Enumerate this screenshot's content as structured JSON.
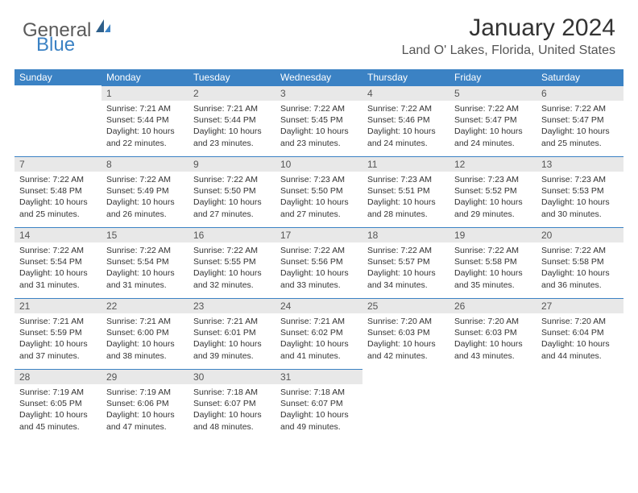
{
  "logo": {
    "general": "General",
    "blue": "Blue"
  },
  "title": "January 2024",
  "location": "Land O' Lakes, Florida, United States",
  "columns": [
    "Sunday",
    "Monday",
    "Tuesday",
    "Wednesday",
    "Thursday",
    "Friday",
    "Saturday"
  ],
  "colors": {
    "header_bg": "#3b82c4",
    "header_text": "#ffffff",
    "daynum_bg": "#e8e8e8",
    "border": "#3b82c4",
    "text": "#333333",
    "logo_gray": "#5a5a5a",
    "logo_blue": "#3b82c4"
  },
  "first_weekday": 1,
  "days": [
    {
      "n": "1",
      "sunrise": "7:21 AM",
      "sunset": "5:44 PM",
      "daylight": "10 hours and 22 minutes."
    },
    {
      "n": "2",
      "sunrise": "7:21 AM",
      "sunset": "5:44 PM",
      "daylight": "10 hours and 23 minutes."
    },
    {
      "n": "3",
      "sunrise": "7:22 AM",
      "sunset": "5:45 PM",
      "daylight": "10 hours and 23 minutes."
    },
    {
      "n": "4",
      "sunrise": "7:22 AM",
      "sunset": "5:46 PM",
      "daylight": "10 hours and 24 minutes."
    },
    {
      "n": "5",
      "sunrise": "7:22 AM",
      "sunset": "5:47 PM",
      "daylight": "10 hours and 24 minutes."
    },
    {
      "n": "6",
      "sunrise": "7:22 AM",
      "sunset": "5:47 PM",
      "daylight": "10 hours and 25 minutes."
    },
    {
      "n": "7",
      "sunrise": "7:22 AM",
      "sunset": "5:48 PM",
      "daylight": "10 hours and 25 minutes."
    },
    {
      "n": "8",
      "sunrise": "7:22 AM",
      "sunset": "5:49 PM",
      "daylight": "10 hours and 26 minutes."
    },
    {
      "n": "9",
      "sunrise": "7:22 AM",
      "sunset": "5:50 PM",
      "daylight": "10 hours and 27 minutes."
    },
    {
      "n": "10",
      "sunrise": "7:23 AM",
      "sunset": "5:50 PM",
      "daylight": "10 hours and 27 minutes."
    },
    {
      "n": "11",
      "sunrise": "7:23 AM",
      "sunset": "5:51 PM",
      "daylight": "10 hours and 28 minutes."
    },
    {
      "n": "12",
      "sunrise": "7:23 AM",
      "sunset": "5:52 PM",
      "daylight": "10 hours and 29 minutes."
    },
    {
      "n": "13",
      "sunrise": "7:23 AM",
      "sunset": "5:53 PM",
      "daylight": "10 hours and 30 minutes."
    },
    {
      "n": "14",
      "sunrise": "7:22 AM",
      "sunset": "5:54 PM",
      "daylight": "10 hours and 31 minutes."
    },
    {
      "n": "15",
      "sunrise": "7:22 AM",
      "sunset": "5:54 PM",
      "daylight": "10 hours and 31 minutes."
    },
    {
      "n": "16",
      "sunrise": "7:22 AM",
      "sunset": "5:55 PM",
      "daylight": "10 hours and 32 minutes."
    },
    {
      "n": "17",
      "sunrise": "7:22 AM",
      "sunset": "5:56 PM",
      "daylight": "10 hours and 33 minutes."
    },
    {
      "n": "18",
      "sunrise": "7:22 AM",
      "sunset": "5:57 PM",
      "daylight": "10 hours and 34 minutes."
    },
    {
      "n": "19",
      "sunrise": "7:22 AM",
      "sunset": "5:58 PM",
      "daylight": "10 hours and 35 minutes."
    },
    {
      "n": "20",
      "sunrise": "7:22 AM",
      "sunset": "5:58 PM",
      "daylight": "10 hours and 36 minutes."
    },
    {
      "n": "21",
      "sunrise": "7:21 AM",
      "sunset": "5:59 PM",
      "daylight": "10 hours and 37 minutes."
    },
    {
      "n": "22",
      "sunrise": "7:21 AM",
      "sunset": "6:00 PM",
      "daylight": "10 hours and 38 minutes."
    },
    {
      "n": "23",
      "sunrise": "7:21 AM",
      "sunset": "6:01 PM",
      "daylight": "10 hours and 39 minutes."
    },
    {
      "n": "24",
      "sunrise": "7:21 AM",
      "sunset": "6:02 PM",
      "daylight": "10 hours and 41 minutes."
    },
    {
      "n": "25",
      "sunrise": "7:20 AM",
      "sunset": "6:03 PM",
      "daylight": "10 hours and 42 minutes."
    },
    {
      "n": "26",
      "sunrise": "7:20 AM",
      "sunset": "6:03 PM",
      "daylight": "10 hours and 43 minutes."
    },
    {
      "n": "27",
      "sunrise": "7:20 AM",
      "sunset": "6:04 PM",
      "daylight": "10 hours and 44 minutes."
    },
    {
      "n": "28",
      "sunrise": "7:19 AM",
      "sunset": "6:05 PM",
      "daylight": "10 hours and 45 minutes."
    },
    {
      "n": "29",
      "sunrise": "7:19 AM",
      "sunset": "6:06 PM",
      "daylight": "10 hours and 47 minutes."
    },
    {
      "n": "30",
      "sunrise": "7:18 AM",
      "sunset": "6:07 PM",
      "daylight": "10 hours and 48 minutes."
    },
    {
      "n": "31",
      "sunrise": "7:18 AM",
      "sunset": "6:07 PM",
      "daylight": "10 hours and 49 minutes."
    }
  ],
  "labels": {
    "sunrise": "Sunrise:",
    "sunset": "Sunset:",
    "daylight": "Daylight:"
  }
}
